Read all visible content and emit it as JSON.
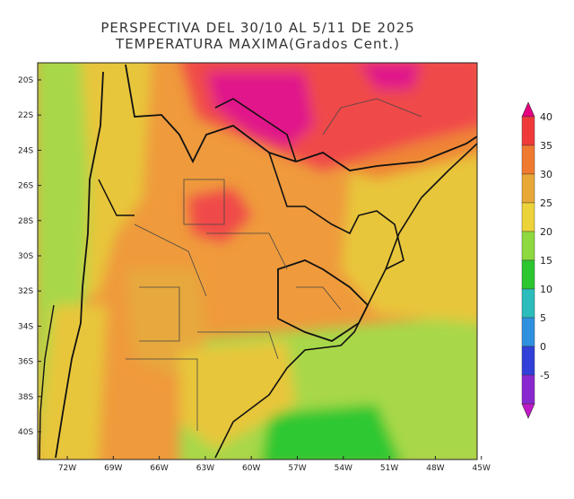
{
  "title": {
    "line1": "PERSPECTIVA DEL 30/10 AL 5/11 DE 2025",
    "line2": "TEMPERATURA MAXIMA(Grados Cent.)"
  },
  "lat_labels": [
    "20S",
    "22S",
    "24S",
    "26S",
    "28S",
    "30S",
    "32S",
    "34S",
    "36S",
    "38S",
    "40S"
  ],
  "lon_labels": [
    "72W",
    "69W",
    "66W",
    "63W",
    "60W",
    "57W",
    "54W",
    "51W",
    "48W",
    "45W"
  ],
  "colorbar": {
    "labels": [
      "40",
      "35",
      "30",
      "25",
      "20",
      "15",
      "10",
      "5",
      "0",
      "-5"
    ],
    "colors": [
      "#e6007e",
      "#f03a3a",
      "#f07a30",
      "#e8a838",
      "#ecd33a",
      "#8ed840",
      "#2cc630",
      "#2cbcbc",
      "#3090e0",
      "#3040d8",
      "#8a28d0",
      "#c018c8"
    ]
  },
  "colors": {
    "c40": "#e0188a",
    "c35": "#f04848",
    "c30": "#ef8535",
    "c27": "#e7a93c",
    "c25": "#e8c63a",
    "c20": "#a8d84a",
    "c15": "#2ec832",
    "border": "#111111",
    "province": "#444444"
  }
}
